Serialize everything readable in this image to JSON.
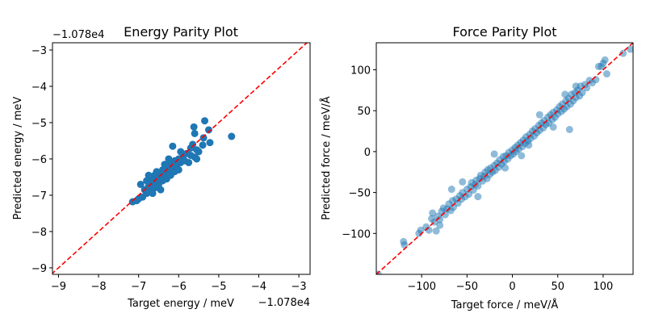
{
  "chart_data": [
    {
      "type": "scatter",
      "title": "Energy Parity Plot",
      "xlabel": "Target energy / meV",
      "ylabel": "Predicted energy / meV",
      "x_offset_label": "−1.078e4",
      "y_offset_label": "−1.078e4",
      "xlim": [
        -9.15,
        -2.72
      ],
      "ylim": [
        -9.18,
        -2.8
      ],
      "xticks": [
        -9,
        -8,
        -7,
        -6,
        -5,
        -4,
        -3
      ],
      "xtick_labels": [
        "−9",
        "−8",
        "−7",
        "−6",
        "−5",
        "−4",
        "−3"
      ],
      "yticks": [
        -9,
        -8,
        -7,
        -6,
        -5,
        -4,
        -3
      ],
      "ytick_labels": [
        "−9",
        "−8",
        "−7",
        "−6",
        "−5",
        "−4",
        "−3"
      ],
      "grid": false,
      "marker_color": "#1f77b4",
      "marker_alpha": 1.0,
      "reference_line": {
        "style": "dashed",
        "color": "#ff0000",
        "slope": 1
      },
      "points": [
        [
          -7.15,
          -7.18
        ],
        [
          -7.05,
          -7.15
        ],
        [
          -7.0,
          -7.1
        ],
        [
          -6.95,
          -6.7
        ],
        [
          -6.9,
          -7.05
        ],
        [
          -6.85,
          -6.85
        ],
        [
          -6.8,
          -6.95
        ],
        [
          -6.8,
          -6.6
        ],
        [
          -6.75,
          -6.75
        ],
        [
          -6.7,
          -6.9
        ],
        [
          -6.7,
          -6.55
        ],
        [
          -6.65,
          -6.65
        ],
        [
          -6.6,
          -6.8
        ],
        [
          -6.6,
          -6.45
        ],
        [
          -6.55,
          -6.6
        ],
        [
          -6.5,
          -6.7
        ],
        [
          -6.5,
          -6.4
        ],
        [
          -6.45,
          -6.5
        ],
        [
          -6.4,
          -6.6
        ],
        [
          -6.4,
          -6.3
        ],
        [
          -6.35,
          -6.45
        ],
        [
          -6.3,
          -6.55
        ],
        [
          -6.3,
          -6.2
        ],
        [
          -6.25,
          -6.35
        ],
        [
          -6.2,
          -6.45
        ],
        [
          -6.2,
          -6.1
        ],
        [
          -6.15,
          -6.25
        ],
        [
          -6.15,
          -5.65
        ],
        [
          -6.1,
          -6.35
        ],
        [
          -6.1,
          -6.05
        ],
        [
          -6.05,
          -6.2
        ],
        [
          -6.0,
          -6.0
        ],
        [
          -6.0,
          -6.3
        ],
        [
          -5.95,
          -6.1
        ],
        [
          -5.9,
          -5.95
        ],
        [
          -5.85,
          -6.05
        ],
        [
          -5.8,
          -5.85
        ],
        [
          -5.75,
          -6.1
        ],
        [
          -5.7,
          -5.9
        ],
        [
          -5.7,
          -5.7
        ],
        [
          -5.65,
          -5.6
        ],
        [
          -5.6,
          -5.95
        ],
        [
          -5.6,
          -5.3
        ],
        [
          -5.62,
          -5.12
        ],
        [
          -5.55,
          -6.0
        ],
        [
          -5.55,
          -5.75
        ],
        [
          -5.5,
          -5.8
        ],
        [
          -5.4,
          -5.62
        ],
        [
          -5.38,
          -5.42
        ],
        [
          -5.35,
          -4.95
        ],
        [
          -5.25,
          -5.2
        ],
        [
          -5.22,
          -5.55
        ],
        [
          -4.68,
          -5.38
        ],
        [
          -6.45,
          -6.85
        ],
        [
          -6.55,
          -6.35
        ],
        [
          -6.35,
          -6.15
        ],
        [
          -6.25,
          -6.0
        ],
        [
          -5.95,
          -5.8
        ],
        [
          -6.65,
          -6.95
        ],
        [
          -6.75,
          -6.45
        ]
      ]
    },
    {
      "type": "scatter",
      "title": "Force Parity Plot",
      "xlabel": "Target force / meV/Å",
      "ylabel": "Predicted force / meV/Å",
      "xlim": [
        -150,
        133
      ],
      "ylim": [
        -150,
        133
      ],
      "xticks": [
        -100,
        -50,
        0,
        50,
        100
      ],
      "xtick_labels": [
        "−100",
        "−50",
        "0",
        "50",
        "100"
      ],
      "yticks": [
        -100,
        -50,
        0,
        50,
        100
      ],
      "ytick_labels": [
        "−100",
        "−50",
        "0",
        "50",
        "100"
      ],
      "grid": false,
      "marker_color": "#1f77b4",
      "marker_alpha": 0.5,
      "reference_line": {
        "style": "dashed",
        "color": "#ff0000",
        "slope": 1
      },
      "points": [
        [
          -148,
          -150
        ],
        [
          -120,
          -110
        ],
        [
          -119,
          -114
        ],
        [
          -103,
          -100
        ],
        [
          -101,
          -96
        ],
        [
          -95,
          -92
        ],
        [
          -92,
          -96
        ],
        [
          -89,
          -82
        ],
        [
          -88,
          -75
        ],
        [
          -86,
          -86
        ],
        [
          -84,
          -97
        ],
        [
          -82,
          -79
        ],
        [
          -80,
          -83
        ],
        [
          -78,
          -73
        ],
        [
          -76,
          -69
        ],
        [
          -74,
          -77
        ],
        [
          -72,
          -70
        ],
        [
          -70,
          -64
        ],
        [
          -68,
          -72
        ],
        [
          -66,
          -60
        ],
        [
          -65,
          -68
        ],
        [
          -62,
          -58
        ],
        [
          -60,
          -63
        ],
        [
          -58,
          -54
        ],
        [
          -56,
          -58
        ],
        [
          -55,
          -50
        ],
        [
          -52,
          -55
        ],
        [
          -50,
          -46
        ],
        [
          -48,
          -52
        ],
        [
          -46,
          -43
        ],
        [
          -45,
          -38
        ],
        [
          -43,
          -47
        ],
        [
          -41,
          -40
        ],
        [
          -40,
          -35
        ],
        [
          -38,
          -42
        ],
        [
          -36,
          -33
        ],
        [
          -35,
          -29
        ],
        [
          -33,
          -36
        ],
        [
          -31,
          -30
        ],
        [
          -30,
          -25
        ],
        [
          -28,
          -33
        ],
        [
          -27,
          -22
        ],
        [
          -25,
          -28
        ],
        [
          -24,
          -20
        ],
        [
          -22,
          -25
        ],
        [
          -20,
          -17
        ],
        [
          -19,
          -23
        ],
        [
          -17,
          -14
        ],
        [
          -15,
          -19
        ],
        [
          -14,
          -10
        ],
        [
          -12,
          -15
        ],
        [
          -10,
          -6
        ],
        [
          -9,
          -12
        ],
        [
          -7,
          -5
        ],
        [
          -5,
          -9
        ],
        [
          -4,
          -1
        ],
        [
          -2,
          -5
        ],
        [
          0,
          2
        ],
        [
          1,
          -3
        ],
        [
          3,
          5
        ],
        [
          4,
          0
        ],
        [
          6,
          8
        ],
        [
          7,
          3
        ],
        [
          9,
          11
        ],
        [
          11,
          6
        ],
        [
          12,
          14
        ],
        [
          14,
          10
        ],
        [
          15,
          18
        ],
        [
          17,
          13
        ],
        [
          19,
          21
        ],
        [
          20,
          16
        ],
        [
          22,
          25
        ],
        [
          24,
          19
        ],
        [
          25,
          28
        ],
        [
          27,
          23
        ],
        [
          29,
          32
        ],
        [
          30,
          26
        ],
        [
          32,
          35
        ],
        [
          34,
          29
        ],
        [
          35,
          38
        ],
        [
          37,
          33
        ],
        [
          39,
          42
        ],
        [
          40,
          35
        ],
        [
          42,
          45
        ],
        [
          44,
          39
        ],
        [
          45,
          48
        ],
        [
          47,
          42
        ],
        [
          49,
          51
        ],
        [
          50,
          46
        ],
        [
          52,
          55
        ],
        [
          54,
          49
        ],
        [
          55,
          58
        ],
        [
          57,
          52
        ],
        [
          59,
          62
        ],
        [
          60,
          55
        ],
        [
          62,
          65
        ],
        [
          64,
          58
        ],
        [
          65,
          70
        ],
        [
          67,
          62
        ],
        [
          69,
          72
        ],
        [
          70,
          66
        ],
        [
          72,
          75
        ],
        [
          74,
          68
        ],
        [
          75,
          80
        ],
        [
          77,
          72
        ],
        [
          80,
          82
        ],
        [
          82,
          78
        ],
        [
          85,
          87
        ],
        [
          88,
          84
        ],
        [
          92,
          88
        ],
        [
          95,
          104
        ],
        [
          98,
          104
        ],
        [
          100,
          108
        ],
        [
          102,
          112
        ],
        [
          104,
          95
        ],
        [
          122,
          120
        ],
        [
          130,
          125
        ],
        [
          63,
          27
        ],
        [
          -67,
          -46
        ],
        [
          -20,
          -3
        ],
        [
          -38,
          -55
        ],
        [
          10,
          -5
        ],
        [
          30,
          45
        ],
        [
          -55,
          -37
        ],
        [
          45,
          30
        ],
        [
          70,
          80
        ],
        [
          -80,
          -90
        ],
        [
          58,
          70
        ],
        [
          18,
          8
        ],
        [
          -8,
          -20
        ]
      ]
    }
  ]
}
